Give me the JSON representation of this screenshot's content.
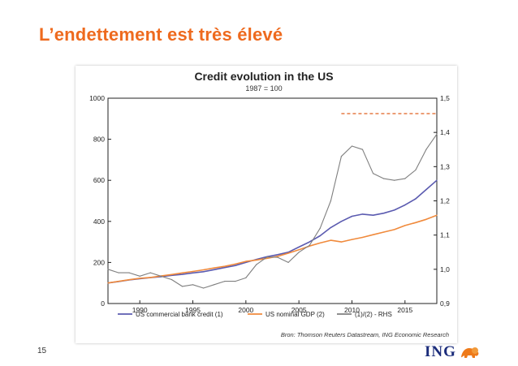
{
  "slide": {
    "title": "L’endettement est très élevé",
    "page_number": "15",
    "logo_text": "ING"
  },
  "colors": {
    "title": "#ee6a1e",
    "bank_credit": "#5b5bb0",
    "gdp": "#f08a3c",
    "ratio": "#7f7f7f",
    "peak_line": "#e06020"
  },
  "chart_data": {
    "type": "line",
    "title": "Credit evolution in the US",
    "subtitle": "1987 = 100",
    "source": "Bron: Thomson Reuters Datastream, ING Economic Research",
    "x": [
      1987,
      1988,
      1989,
      1990,
      1991,
      1992,
      1993,
      1994,
      1995,
      1996,
      1997,
      1998,
      1999,
      2000,
      2001,
      2002,
      2003,
      2004,
      2005,
      2006,
      2007,
      2008,
      2009,
      2010,
      2011,
      2012,
      2013,
      2014,
      2015,
      2016,
      2017,
      2018
    ],
    "xlim": [
      1987,
      2018
    ],
    "xticks": [
      1990,
      1995,
      2000,
      2005,
      2010,
      2015
    ],
    "ylim_left": [
      0,
      1000
    ],
    "yticks_left": [
      0,
      200,
      400,
      600,
      800,
      1000
    ],
    "ylim_right": [
      0.9,
      1.5
    ],
    "yticks_right": [
      "0,9",
      "1,0",
      "1,1",
      "1,2",
      "1,3",
      "1,4",
      "1,5"
    ],
    "series": [
      {
        "name": "US commercial bank credit (1)",
        "axis": "left",
        "values": [
          100,
          107,
          115,
          121,
          126,
          131,
          137,
          142,
          149,
          155,
          165,
          175,
          185,
          200,
          215,
          228,
          238,
          250,
          275,
          300,
          330,
          370,
          400,
          425,
          435,
          430,
          440,
          455,
          480,
          510,
          555,
          600
        ]
      },
      {
        "name": "US nominal GDP (2)",
        "axis": "left",
        "values": [
          100,
          108,
          116,
          123,
          127,
          134,
          141,
          149,
          156,
          164,
          173,
          181,
          192,
          205,
          212,
          220,
          230,
          245,
          262,
          280,
          295,
          308,
          300,
          312,
          322,
          335,
          348,
          360,
          380,
          394,
          410,
          430
        ]
      },
      {
        "name": "(1)/(2) - RHS",
        "axis": "right",
        "values": [
          1.0,
          0.99,
          0.99,
          0.98,
          0.99,
          0.98,
          0.97,
          0.95,
          0.955,
          0.945,
          0.955,
          0.965,
          0.965,
          0.975,
          1.014,
          1.036,
          1.035,
          1.02,
          1.05,
          1.07,
          1.12,
          1.2,
          1.33,
          1.36,
          1.35,
          1.28,
          1.265,
          1.26,
          1.265,
          1.29,
          1.35,
          1.395
        ]
      }
    ],
    "peak_reference": {
      "label": "",
      "value": 1.455,
      "x_start": 2009,
      "x_end": 2018
    },
    "legend_position": "bottom"
  }
}
